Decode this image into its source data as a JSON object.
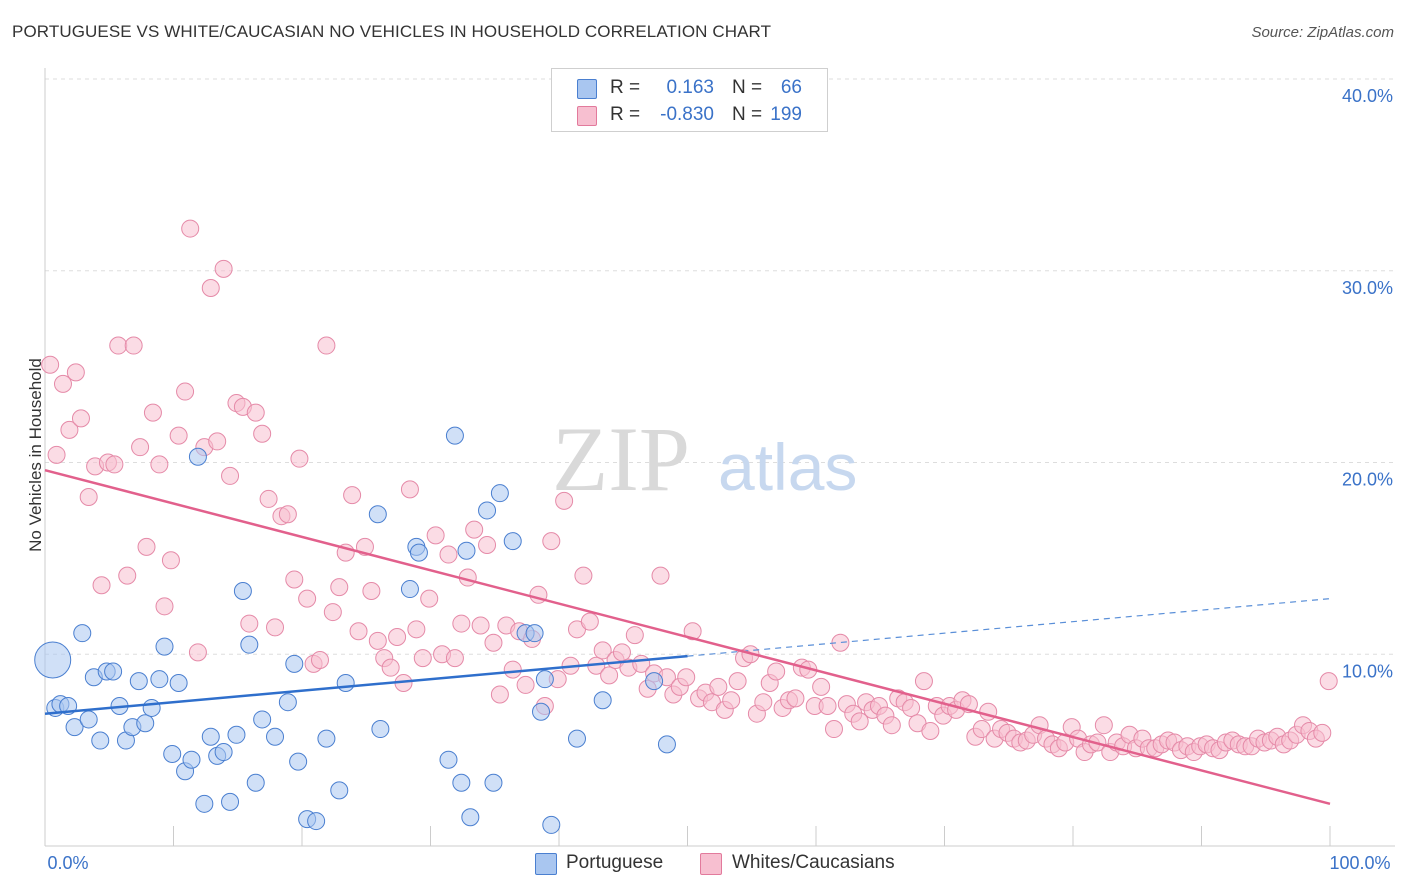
{
  "header": {
    "title": "PORTUGUESE VS WHITE/CAUCASIAN NO VEHICLES IN HOUSEHOLD CORRELATION CHART",
    "source": "Source: ZipAtlas.com"
  },
  "watermark": {
    "zip": "ZIP",
    "atlas": "atlas"
  },
  "legend": {
    "rows": [
      {
        "r_label": "R =",
        "r_value": "0.163",
        "n_label": "N =",
        "n_value": "66",
        "color": "#a9c6f0",
        "stroke": "#4a7fd0"
      },
      {
        "r_label": "R =",
        "r_value": "-0.830",
        "n_label": "N =",
        "n_value": "199",
        "color": "#f7bfd0",
        "stroke": "#e27a9c"
      }
    ]
  },
  "bottom_legend": {
    "items": [
      {
        "label": "Portuguese",
        "color": "#a9c6f0",
        "stroke": "#4a7fd0"
      },
      {
        "label": "Whites/Caucasians",
        "color": "#f7bfd0",
        "stroke": "#e27a9c"
      }
    ]
  },
  "chart_data": {
    "type": "scatter",
    "title": "PORTUGUESE VS WHITE/CAUCASIAN NO VEHICLES IN HOUSEHOLD CORRELATION CHART",
    "xlabel": "",
    "ylabel": "No Vehicles in Household",
    "xlim": [
      0,
      100
    ],
    "ylim": [
      0,
      40
    ],
    "x_tick_labels": [
      "0.0%",
      "100.0%"
    ],
    "y_ticks": [
      10,
      20,
      30,
      40
    ],
    "y_tick_labels": [
      "10.0%",
      "20.0%",
      "30.0%",
      "40.0%"
    ],
    "grid": true,
    "colors": {
      "portuguese": "#4a7fd0",
      "whites": "#e2608c",
      "tick_label": "#3a72c8"
    },
    "series": [
      {
        "name": "Portuguese",
        "trend": {
          "x0": 0,
          "y0": 6.9,
          "x1": 50,
          "y1": 9.9,
          "dashed_to_x": 100,
          "dashed_to_y": 12.9
        },
        "points": [
          [
            0.6,
            9.7,
            "large"
          ],
          [
            0.8,
            7.2
          ],
          [
            1.2,
            7.4
          ],
          [
            1.8,
            7.3
          ],
          [
            2.3,
            6.2
          ],
          [
            2.9,
            11.1
          ],
          [
            3.4,
            6.6
          ],
          [
            3.8,
            8.8
          ],
          [
            4.3,
            5.5
          ],
          [
            4.8,
            9.1
          ],
          [
            5.3,
            9.1
          ],
          [
            5.8,
            7.3
          ],
          [
            6.3,
            5.5
          ],
          [
            6.8,
            6.2
          ],
          [
            7.3,
            8.6
          ],
          [
            7.8,
            6.4
          ],
          [
            8.3,
            7.2
          ],
          [
            8.9,
            8.7
          ],
          [
            9.3,
            10.4
          ],
          [
            9.9,
            4.8
          ],
          [
            10.4,
            8.5
          ],
          [
            10.9,
            3.9
          ],
          [
            11.4,
            4.5
          ],
          [
            11.9,
            20.3
          ],
          [
            12.4,
            2.2
          ],
          [
            12.9,
            5.7
          ],
          [
            13.4,
            4.7
          ],
          [
            13.9,
            4.9
          ],
          [
            14.4,
            2.3
          ],
          [
            14.9,
            5.8
          ],
          [
            15.4,
            13.3
          ],
          [
            15.9,
            10.5
          ],
          [
            16.4,
            3.3
          ],
          [
            16.9,
            6.6
          ],
          [
            17.9,
            5.7
          ],
          [
            18.9,
            7.5
          ],
          [
            19.4,
            9.5
          ],
          [
            19.7,
            4.4
          ],
          [
            20.4,
            1.4
          ],
          [
            21.1,
            1.3
          ],
          [
            21.9,
            5.6
          ],
          [
            22.9,
            2.9
          ],
          [
            23.4,
            8.5
          ],
          [
            25.9,
            17.3
          ],
          [
            26.1,
            6.1
          ],
          [
            28.4,
            13.4
          ],
          [
            28.9,
            15.6
          ],
          [
            29.1,
            15.3
          ],
          [
            31.4,
            4.5
          ],
          [
            31.9,
            21.4
          ],
          [
            32.4,
            3.3
          ],
          [
            32.8,
            15.4
          ],
          [
            33.1,
            1.5
          ],
          [
            34.4,
            17.5
          ],
          [
            34.9,
            3.3
          ],
          [
            35.4,
            18.4
          ],
          [
            36.4,
            15.9
          ],
          [
            37.4,
            11.1
          ],
          [
            38.1,
            11.1
          ],
          [
            38.6,
            7.0
          ],
          [
            38.9,
            8.7
          ],
          [
            39.4,
            1.1
          ],
          [
            41.4,
            5.6
          ],
          [
            43.4,
            7.6
          ],
          [
            48.4,
            5.3
          ],
          [
            47.4,
            8.6
          ]
        ]
      },
      {
        "name": "Whites/Caucasians",
        "trend": {
          "x0": 0,
          "y0": 19.6,
          "x1": 100,
          "y1": 2.2
        },
        "points": [
          [
            0.4,
            25.1
          ],
          [
            0.9,
            20.4
          ],
          [
            1.4,
            24.1
          ],
          [
            1.9,
            21.7
          ],
          [
            2.4,
            24.7
          ],
          [
            2.8,
            22.3
          ],
          [
            3.4,
            18.2
          ],
          [
            3.9,
            19.8
          ],
          [
            4.4,
            13.6
          ],
          [
            4.9,
            20.0
          ],
          [
            5.4,
            19.9
          ],
          [
            5.7,
            26.1
          ],
          [
            6.4,
            14.1
          ],
          [
            6.9,
            26.1
          ],
          [
            7.4,
            20.8
          ],
          [
            7.9,
            15.6
          ],
          [
            8.4,
            22.6
          ],
          [
            8.9,
            19.9
          ],
          [
            9.3,
            12.5
          ],
          [
            9.8,
            14.9
          ],
          [
            10.4,
            21.4
          ],
          [
            10.9,
            23.7
          ],
          [
            11.3,
            32.2
          ],
          [
            11.9,
            10.1
          ],
          [
            12.4,
            20.8
          ],
          [
            12.9,
            29.1
          ],
          [
            13.4,
            21.1
          ],
          [
            13.9,
            30.1
          ],
          [
            14.4,
            19.3
          ],
          [
            14.9,
            23.1
          ],
          [
            15.4,
            22.9
          ],
          [
            15.9,
            11.6
          ],
          [
            16.4,
            22.6
          ],
          [
            16.9,
            21.5
          ],
          [
            17.4,
            18.1
          ],
          [
            17.9,
            11.4
          ],
          [
            18.4,
            17.2
          ],
          [
            18.9,
            17.3
          ],
          [
            19.4,
            13.9
          ],
          [
            19.8,
            20.2
          ],
          [
            20.4,
            12.9
          ],
          [
            20.9,
            9.5
          ],
          [
            21.4,
            9.7
          ],
          [
            21.9,
            26.1
          ],
          [
            22.4,
            12.2
          ],
          [
            22.9,
            13.5
          ],
          [
            23.4,
            15.3
          ],
          [
            23.9,
            18.3
          ],
          [
            24.4,
            11.2
          ],
          [
            24.9,
            15.6
          ],
          [
            25.4,
            13.3
          ],
          [
            25.9,
            10.7
          ],
          [
            26.4,
            9.8
          ],
          [
            26.9,
            9.3
          ],
          [
            27.4,
            10.9
          ],
          [
            27.9,
            8.5
          ],
          [
            28.4,
            18.6
          ],
          [
            28.9,
            11.3
          ],
          [
            29.4,
            9.8
          ],
          [
            29.9,
            12.9
          ],
          [
            30.4,
            16.2
          ],
          [
            30.9,
            10.0
          ],
          [
            31.4,
            15.2
          ],
          [
            31.9,
            9.8
          ],
          [
            32.4,
            11.6
          ],
          [
            32.9,
            14.0
          ],
          [
            33.4,
            16.5
          ],
          [
            33.9,
            11.5
          ],
          [
            34.4,
            15.7
          ],
          [
            34.9,
            10.6
          ],
          [
            35.4,
            7.9
          ],
          [
            35.9,
            11.5
          ],
          [
            36.4,
            9.2
          ],
          [
            36.9,
            11.2
          ],
          [
            37.4,
            8.4
          ],
          [
            37.9,
            10.8
          ],
          [
            38.4,
            13.1
          ],
          [
            38.9,
            7.3
          ],
          [
            39.4,
            15.9
          ],
          [
            39.9,
            8.7
          ],
          [
            40.4,
            18.0
          ],
          [
            40.9,
            9.4
          ],
          [
            41.4,
            11.3
          ],
          [
            41.9,
            14.1
          ],
          [
            42.4,
            11.7
          ],
          [
            42.9,
            9.4
          ],
          [
            43.4,
            10.2
          ],
          [
            43.9,
            8.9
          ],
          [
            44.4,
            9.7
          ],
          [
            44.9,
            10.1
          ],
          [
            45.4,
            9.3
          ],
          [
            45.9,
            11.0
          ],
          [
            46.4,
            9.5
          ],
          [
            46.9,
            8.2
          ],
          [
            47.4,
            9.0
          ],
          [
            47.9,
            14.1
          ],
          [
            48.4,
            8.8
          ],
          [
            48.9,
            7.9
          ],
          [
            49.4,
            8.3
          ],
          [
            49.9,
            8.8
          ],
          [
            50.4,
            11.2
          ],
          [
            50.9,
            7.7
          ],
          [
            51.4,
            8.0
          ],
          [
            51.9,
            7.5
          ],
          [
            52.4,
            8.3
          ],
          [
            52.9,
            7.1
          ],
          [
            53.4,
            7.6
          ],
          [
            53.9,
            8.6
          ],
          [
            54.4,
            9.8
          ],
          [
            54.9,
            10.0
          ],
          [
            55.4,
            6.9
          ],
          [
            55.9,
            7.5
          ],
          [
            56.4,
            8.5
          ],
          [
            56.9,
            9.1
          ],
          [
            57.4,
            7.2
          ],
          [
            57.9,
            7.6
          ],
          [
            58.4,
            7.7
          ],
          [
            58.9,
            9.3
          ],
          [
            59.4,
            9.2
          ],
          [
            59.9,
            7.3
          ],
          [
            60.4,
            8.3
          ],
          [
            60.9,
            7.3
          ],
          [
            61.4,
            6.1
          ],
          [
            61.9,
            10.6
          ],
          [
            62.4,
            7.4
          ],
          [
            62.9,
            6.9
          ],
          [
            63.4,
            6.5
          ],
          [
            63.9,
            7.5
          ],
          [
            64.4,
            7.1
          ],
          [
            64.9,
            7.3
          ],
          [
            65.4,
            6.8
          ],
          [
            65.9,
            6.3
          ],
          [
            66.4,
            7.7
          ],
          [
            66.9,
            7.5
          ],
          [
            67.4,
            7.2
          ],
          [
            67.9,
            6.4
          ],
          [
            68.4,
            8.6
          ],
          [
            68.9,
            6.0
          ],
          [
            69.4,
            7.3
          ],
          [
            69.9,
            6.8
          ],
          [
            70.4,
            7.3
          ],
          [
            70.9,
            7.1
          ],
          [
            71.4,
            7.6
          ],
          [
            71.9,
            7.4
          ],
          [
            72.4,
            5.7
          ],
          [
            72.9,
            6.1
          ],
          [
            73.4,
            7.0
          ],
          [
            73.9,
            5.6
          ],
          [
            74.4,
            6.1
          ],
          [
            74.9,
            5.9
          ],
          [
            75.4,
            5.6
          ],
          [
            75.9,
            5.4
          ],
          [
            76.4,
            5.5
          ],
          [
            76.9,
            5.8
          ],
          [
            77.4,
            6.3
          ],
          [
            77.9,
            5.6
          ],
          [
            78.4,
            5.3
          ],
          [
            78.9,
            5.1
          ],
          [
            79.4,
            5.4
          ],
          [
            79.9,
            6.2
          ],
          [
            80.4,
            5.6
          ],
          [
            80.9,
            4.9
          ],
          [
            81.4,
            5.3
          ],
          [
            81.9,
            5.4
          ],
          [
            82.4,
            6.3
          ],
          [
            82.9,
            4.9
          ],
          [
            83.4,
            5.4
          ],
          [
            83.9,
            5.2
          ],
          [
            84.4,
            5.8
          ],
          [
            84.9,
            5.1
          ],
          [
            85.4,
            5.6
          ],
          [
            85.9,
            5.1
          ],
          [
            86.4,
            5.1
          ],
          [
            86.9,
            5.3
          ],
          [
            87.4,
            5.5
          ],
          [
            87.9,
            5.4
          ],
          [
            88.4,
            5.0
          ],
          [
            88.9,
            5.2
          ],
          [
            89.4,
            4.9
          ],
          [
            89.9,
            5.2
          ],
          [
            90.4,
            5.3
          ],
          [
            90.9,
            5.1
          ],
          [
            91.4,
            5.0
          ],
          [
            91.9,
            5.4
          ],
          [
            92.4,
            5.5
          ],
          [
            92.9,
            5.3
          ],
          [
            93.4,
            5.2
          ],
          [
            93.9,
            5.2
          ],
          [
            94.4,
            5.6
          ],
          [
            94.9,
            5.4
          ],
          [
            95.4,
            5.5
          ],
          [
            95.9,
            5.7
          ],
          [
            96.4,
            5.3
          ],
          [
            96.9,
            5.5
          ],
          [
            97.4,
            5.8
          ],
          [
            97.9,
            6.3
          ],
          [
            98.4,
            6.0
          ],
          [
            98.9,
            5.6
          ],
          [
            99.4,
            5.9
          ],
          [
            99.9,
            8.6
          ]
        ]
      }
    ]
  }
}
